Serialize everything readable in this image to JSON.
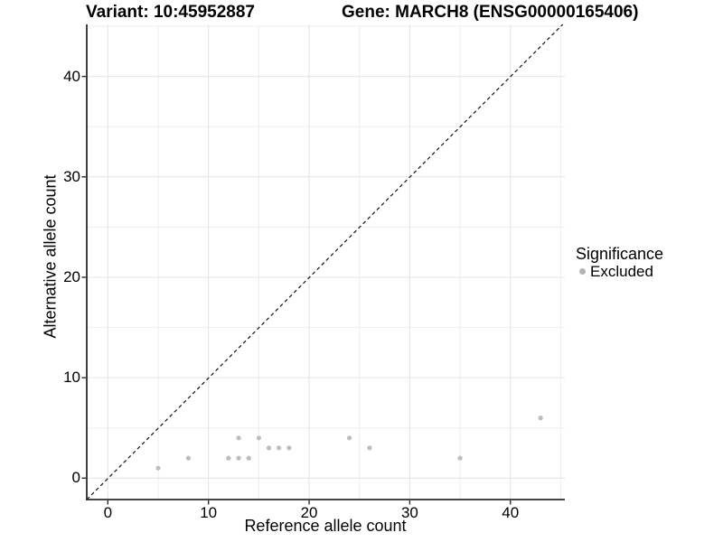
{
  "chart_data": {
    "type": "scatter",
    "title_left": "Variant: 10:45952887",
    "title_right": "Gene: MARCH8 (ENSG00000165406)",
    "xlabel": "Reference allele count",
    "ylabel": "Alternative allele count",
    "x_ticks": [
      0,
      10,
      20,
      30,
      40
    ],
    "y_ticks": [
      0,
      10,
      20,
      30,
      40
    ],
    "minor_gridlines": [
      5,
      15,
      25,
      35,
      45
    ],
    "xlim": [
      -2.1,
      45.4
    ],
    "ylim": [
      -2.1,
      45.4
    ],
    "grid": true,
    "identity_line": {
      "style": "dashed",
      "slope": 1,
      "intercept": 0,
      "color": "#111111"
    },
    "series": [
      {
        "name": "Excluded",
        "color": "#bdbdbd",
        "points": [
          [
            5,
            1
          ],
          [
            8,
            2
          ],
          [
            12,
            2
          ],
          [
            13,
            2
          ],
          [
            13,
            4
          ],
          [
            14,
            2
          ],
          [
            15,
            4
          ],
          [
            16,
            3
          ],
          [
            17,
            3
          ],
          [
            18,
            3
          ],
          [
            24,
            4
          ],
          [
            26,
            3
          ],
          [
            35,
            2
          ],
          [
            43,
            6
          ]
        ]
      }
    ],
    "legend": {
      "position": "right",
      "title": "Significance",
      "entries": [
        {
          "label": "Excluded",
          "color": "#b3b3b3"
        }
      ]
    },
    "colors": {
      "background": "#ffffff",
      "major_grid": "#e4e4e4",
      "minor_grid": "#efefef",
      "axis_line": "#2b2b2b",
      "point": "#bdbdbd"
    }
  }
}
